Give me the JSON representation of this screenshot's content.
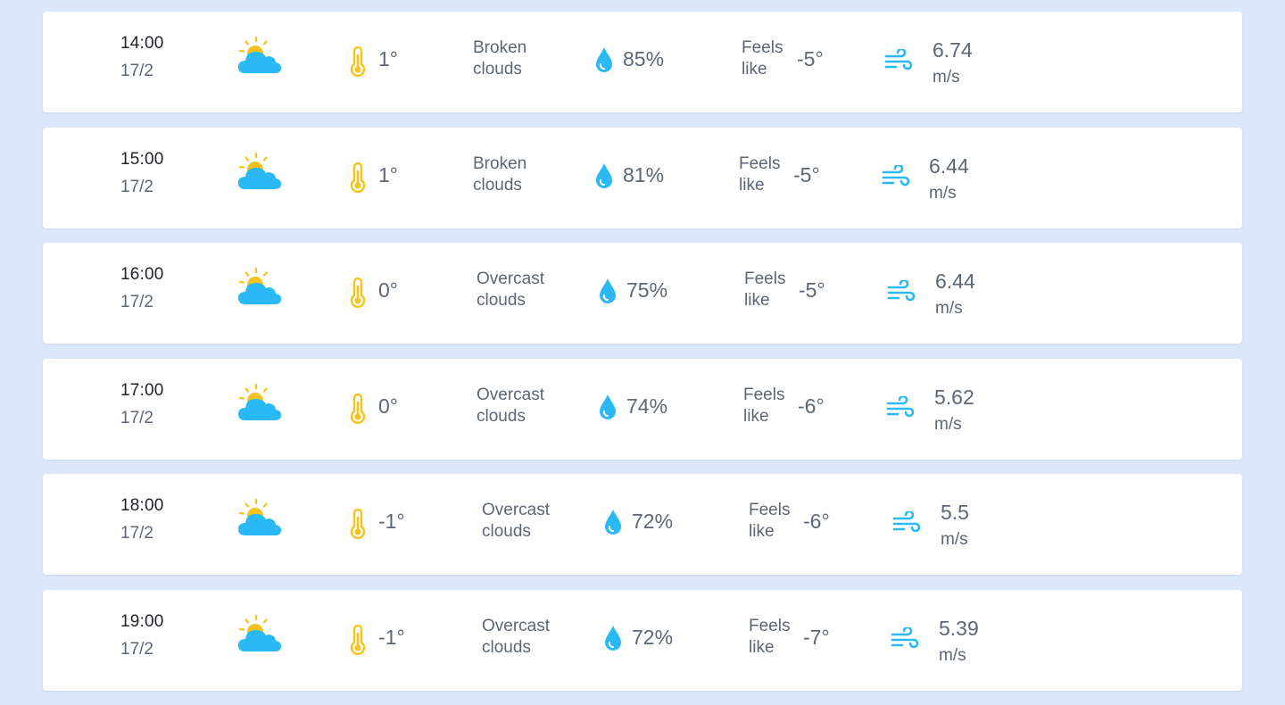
{
  "colors": {
    "background": "#dbe7fd",
    "card": "#ffffff",
    "text_primary": "#1f2328",
    "text_secondary": "#5d6675",
    "accent_yellow": "#f6c21b",
    "accent_blue": "#2ab9f5"
  },
  "icons": {
    "condition": "partly-cloudy-icon",
    "temperature": "thermometer-icon",
    "humidity": "water-drop-icon",
    "wind": "wind-icon"
  },
  "forecast": [
    {
      "time": "14:00",
      "date": "17/2",
      "temp": "1°",
      "desc_line1": "Broken",
      "desc_line2": "clouds",
      "humidity": "85%",
      "feels_line1": "Feels",
      "feels_line2": "like",
      "feels_value": "-5°",
      "wind_speed": "6.74",
      "wind_unit": "m/s"
    },
    {
      "time": "15:00",
      "date": "17/2",
      "temp": "1°",
      "desc_line1": "Broken",
      "desc_line2": "clouds",
      "humidity": "81%",
      "feels_line1": "Feels",
      "feels_line2": "like",
      "feels_value": "-5°",
      "wind_speed": "6.44",
      "wind_unit": "m/s"
    },
    {
      "time": "16:00",
      "date": "17/2",
      "temp": "0°",
      "desc_line1": "Overcast",
      "desc_line2": "clouds",
      "humidity": "75%",
      "feels_line1": "Feels",
      "feels_line2": "like",
      "feels_value": "-5°",
      "wind_speed": "6.44",
      "wind_unit": "m/s"
    },
    {
      "time": "17:00",
      "date": "17/2",
      "temp": "0°",
      "desc_line1": "Overcast",
      "desc_line2": "clouds",
      "humidity": "74%",
      "feels_line1": "Feels",
      "feels_line2": "like",
      "feels_value": "-6°",
      "wind_speed": "5.62",
      "wind_unit": "m/s"
    },
    {
      "time": "18:00",
      "date": "17/2",
      "temp": "-1°",
      "desc_line1": "Overcast",
      "desc_line2": "clouds",
      "humidity": "72%",
      "feels_line1": "Feels",
      "feels_line2": "like",
      "feels_value": "-6°",
      "wind_speed": "5.5",
      "wind_unit": "m/s"
    },
    {
      "time": "19:00",
      "date": "17/2",
      "temp": "-1°",
      "desc_line1": "Overcast",
      "desc_line2": "clouds",
      "humidity": "72%",
      "feels_line1": "Feels",
      "feels_line2": "like",
      "feels_value": "-7°",
      "wind_speed": "5.39",
      "wind_unit": "m/s"
    }
  ]
}
